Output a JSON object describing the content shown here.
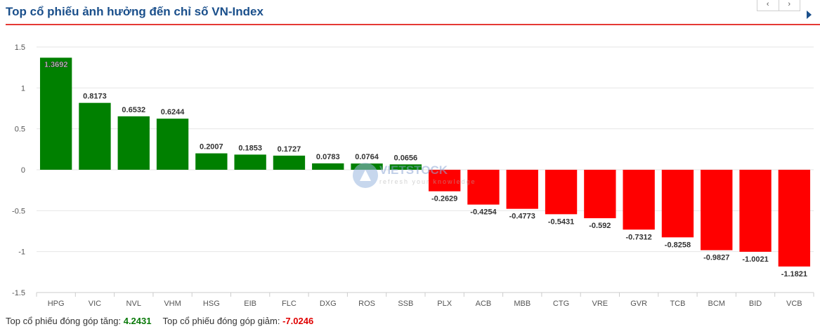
{
  "header": {
    "title": "Top cổ phiếu ảnh hưởng đến chỉ số VN-Index",
    "prev_label": "‹",
    "next_label": "›",
    "more_icon": "caret-right-icon",
    "accent_color": "#1a4f8b",
    "underline_color": "#e53935"
  },
  "watermark": {
    "text_main": "VIETSTOCK",
    "text_sub": "refresh your knowledge"
  },
  "chart_data": {
    "type": "bar",
    "categories": [
      "HPG",
      "VIC",
      "NVL",
      "VHM",
      "HSG",
      "EIB",
      "FLC",
      "DXG",
      "ROS",
      "SSB",
      "PLX",
      "ACB",
      "MBB",
      "CTG",
      "VRE",
      "GVR",
      "TCB",
      "BCM",
      "BID",
      "VCB"
    ],
    "values": [
      1.3692,
      0.8173,
      0.6532,
      0.6244,
      0.2007,
      0.1853,
      0.1727,
      0.0783,
      0.0764,
      0.0656,
      -0.2629,
      -0.4254,
      -0.4773,
      -0.5431,
      -0.592,
      -0.7312,
      -0.8258,
      -0.9827,
      -1.0021,
      -1.1821
    ],
    "value_labels": [
      "1.3692",
      "0.8173",
      "0.6532",
      "0.6244",
      "0.2007",
      "0.1853",
      "0.1727",
      "0.0783",
      "0.0764",
      "0.0656",
      "-0.2629",
      "-0.4254",
      "-0.4773",
      "-0.5431",
      "-0.592",
      "-0.7312",
      "-0.8258",
      "-0.9827",
      "-1.0021",
      "-1.1821"
    ],
    "ylim": [
      -1.5,
      1.5
    ],
    "yticks": [
      1.5,
      1,
      0.5,
      0,
      -0.5,
      -1,
      -1.5
    ],
    "ytick_labels": [
      "1.5",
      "1",
      "0.5",
      "0",
      "-0.5",
      "-1",
      "-1.5"
    ],
    "grid": true,
    "positive_color": "#008000",
    "negative_color": "#ff0000",
    "title": "",
    "xlabel": "",
    "ylabel": ""
  },
  "footer": {
    "up_label": "Top cổ phiếu đóng góp tăng:",
    "up_value": "4.2431",
    "down_label": "Top cổ phiếu đóng góp giảm:",
    "down_value": "-7.0246"
  }
}
